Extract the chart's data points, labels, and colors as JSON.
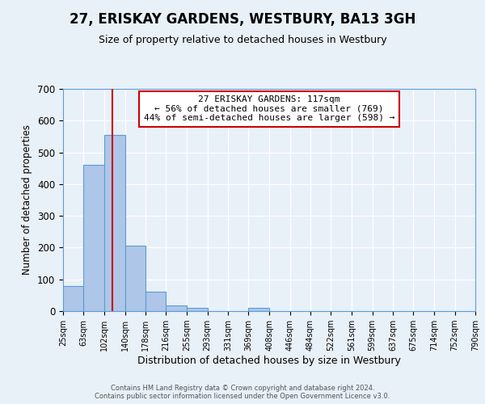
{
  "title": "27, ERISKAY GARDENS, WESTBURY, BA13 3GH",
  "subtitle": "Size of property relative to detached houses in Westbury",
  "xlabel": "Distribution of detached houses by size in Westbury",
  "ylabel": "Number of detached properties",
  "footer_line1": "Contains HM Land Registry data © Crown copyright and database right 2024.",
  "footer_line2": "Contains public sector information licensed under the Open Government Licence v3.0.",
  "bin_edges": [
    25,
    63,
    102,
    140,
    178,
    216,
    255,
    293,
    331,
    369,
    408,
    446,
    484,
    522,
    561,
    599,
    637,
    675,
    714,
    752,
    790
  ],
  "bar_heights": [
    80,
    460,
    555,
    205,
    60,
    18,
    10,
    0,
    0,
    10,
    0,
    0,
    0,
    0,
    0,
    0,
    0,
    0,
    0,
    0
  ],
  "property_size": 117,
  "annotation_text": "27 ERISKAY GARDENS: 117sqm\n← 56% of detached houses are smaller (769)\n44% of semi-detached houses are larger (598) →",
  "bar_color": "#aec6e8",
  "bar_edge_color": "#5b9bd5",
  "red_line_color": "#cc0000",
  "annotation_box_color": "#ffffff",
  "annotation_box_edge_color": "#cc0000",
  "bg_color": "#e8f0f8",
  "grid_color": "#ffffff",
  "ylim": [
    0,
    700
  ],
  "xlim": [
    25,
    790
  ],
  "title_fontsize": 12,
  "subtitle_fontsize": 9,
  "ylabel_fontsize": 8.5,
  "xlabel_fontsize": 9,
  "ytick_fontsize": 8.5,
  "xtick_fontsize": 7,
  "footer_fontsize": 6,
  "annot_fontsize": 8
}
